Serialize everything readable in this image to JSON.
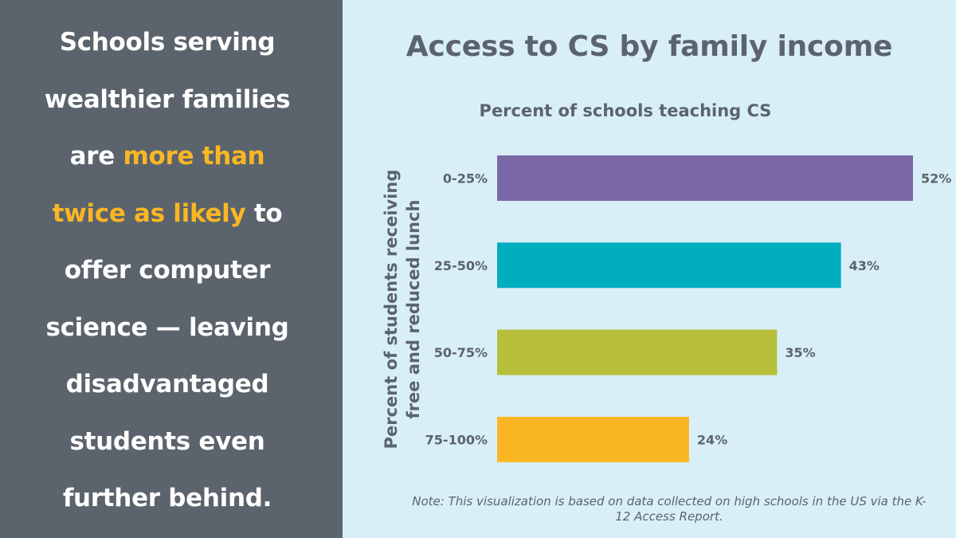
{
  "panel": {
    "lines": [
      [
        {
          "t": "Schools serving"
        }
      ],
      [
        {
          "t": "wealthier families"
        }
      ],
      [
        {
          "t": "are "
        },
        {
          "t": "more than",
          "h": true
        }
      ],
      [
        {
          "t": "twice as likely",
          "h": true
        },
        {
          "t": " to"
        }
      ],
      [
        {
          "t": "offer computer"
        }
      ],
      [
        {
          "t": "science — leaving"
        }
      ],
      [
        {
          "t": "disadvantaged"
        }
      ],
      [
        {
          "t": "students even"
        }
      ],
      [
        {
          "t": "further behind."
        }
      ]
    ]
  },
  "colors": {
    "left_bg": "#5b646c",
    "right_bg": "#d9eff7",
    "highlight": "#fbb623",
    "text": "#5b646c"
  },
  "chart_data": {
    "type": "bar",
    "orientation": "horizontal",
    "title": "Access to CS by family income",
    "subtitle": "Percent of schools teaching CS",
    "ylabel_lines": [
      "Percent of students receiving",
      "free and reduced lunch"
    ],
    "xlabel": "",
    "categories": [
      "0-25%",
      "25-50%",
      "50-75%",
      "75-100%"
    ],
    "values": [
      52,
      43,
      35,
      24
    ],
    "value_labels": [
      "52%",
      "43%",
      "35%",
      "24%"
    ],
    "colors": [
      "#7a69a6",
      "#00aebf",
      "#b7bf3a",
      "#fbb623"
    ],
    "xlim": [
      0,
      52
    ],
    "grid": false,
    "legend": "none"
  },
  "note": "Note: This visualization is based on data collected on high schools in the US via the K-12 Access Report."
}
